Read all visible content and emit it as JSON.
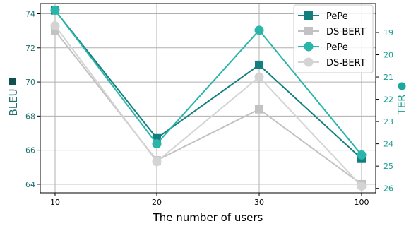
{
  "chart_data": {
    "type": "line",
    "title": "",
    "xlabel": "The number of users",
    "x_categories": [
      "10",
      "20",
      "30",
      "100"
    ],
    "y_left": {
      "label": "BLEU",
      "ylim": [
        63.5,
        74.6
      ],
      "ticks": [
        64,
        66,
        68,
        70,
        72,
        74
      ]
    },
    "y_right": {
      "label": "TER",
      "ylim": [
        26.2,
        17.7
      ],
      "ticks": [
        19,
        20,
        21,
        22,
        23,
        24,
        25,
        26
      ],
      "inverted": true
    },
    "grid": true,
    "legend_position": "top-right",
    "series": [
      {
        "name": "PePe",
        "axis": "left",
        "marker": "square",
        "color": "#137e7e",
        "values": [
          74.2,
          66.7,
          71.0,
          65.5
        ]
      },
      {
        "name": "DS-BERT",
        "axis": "left",
        "marker": "square",
        "color": "#c2c2c2",
        "values": [
          73.0,
          65.4,
          68.4,
          64.0
        ]
      },
      {
        "name": "PePe",
        "axis": "right",
        "marker": "circle",
        "color": "#2ab5aa",
        "values": [
          18.0,
          24.0,
          18.9,
          24.5
        ]
      },
      {
        "name": "DS-BERT",
        "axis": "right",
        "marker": "circle",
        "color": "#d4d4d4",
        "values": [
          18.7,
          24.8,
          21.0,
          25.9
        ]
      }
    ],
    "colors": {
      "left_axis_text": "#1e6f6f",
      "left_axis_icon": "#0f5050",
      "right_axis_text": "#1a9e90",
      "right_axis_icon": "#1aa99a"
    }
  }
}
